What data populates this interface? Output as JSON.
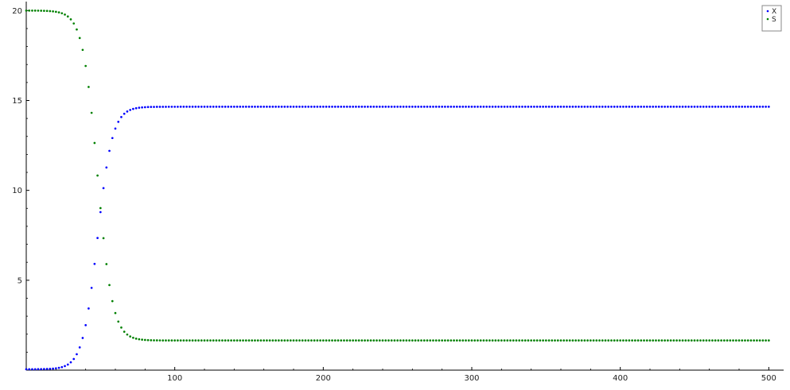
{
  "chart_data": {
    "type": "scatter",
    "title": "",
    "xlabel": "",
    "ylabel": "",
    "xlim": [
      0,
      510
    ],
    "ylim": [
      0,
      20.5
    ],
    "x_ticks": [
      100,
      200,
      300,
      400,
      500
    ],
    "y_ticks": [
      5,
      10,
      15,
      20
    ],
    "grid": false,
    "legend_position": "top-right",
    "series": [
      {
        "name": "X",
        "color": "#0000ff",
        "x_range": [
          0,
          500
        ],
        "sample_step": 2,
        "curve": "logistic",
        "start_value": 0.05,
        "plateau": 14.65,
        "midpoint": 48,
        "rate": 0.2
      },
      {
        "name": "S",
        "color": "#008000",
        "x_range": [
          0,
          500
        ],
        "sample_step": 2,
        "curve": "logistic",
        "start_value": 20.0,
        "plateau": 1.65,
        "midpoint": 48,
        "rate": 0.2
      }
    ]
  }
}
